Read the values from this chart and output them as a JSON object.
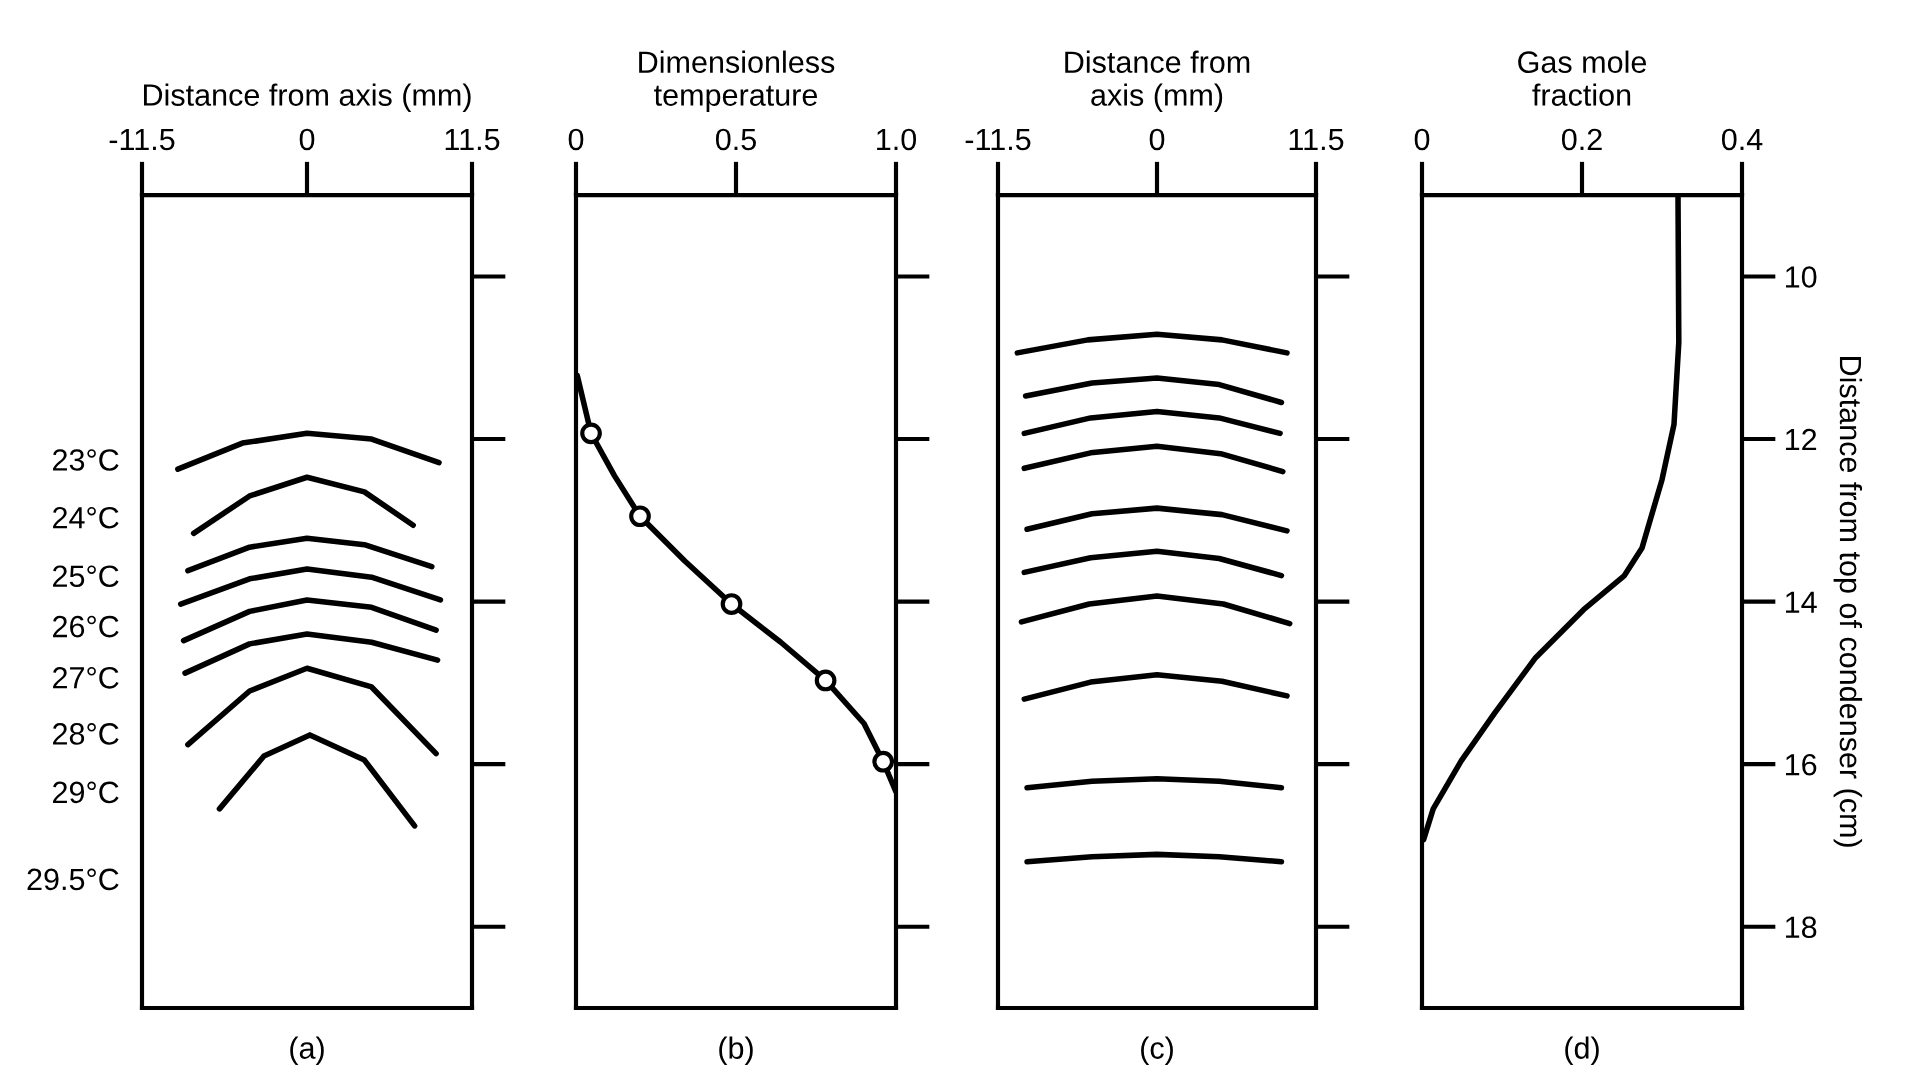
{
  "chart_data": [
    {
      "type": "line",
      "xlabel": "Distance from axis (mm)",
      "xlim": [
        -11.5,
        11.5
      ],
      "xticks": [
        -11.5,
        0,
        11.5
      ],
      "ylim": [
        19,
        9
      ],
      "yticks": [
        10,
        12,
        14,
        16,
        18
      ],
      "tick_labels": "x",
      "grid": false,
      "series": [
        {
          "color": "#000000",
          "x": [
            -9.0,
            -4.5,
            0,
            4.5,
            9.2
          ],
          "values": [
            12.37,
            12.05,
            11.93,
            12.0,
            12.29
          ]
        },
        {
          "color": "#000000",
          "x": [
            -7.9,
            -4,
            0,
            4,
            7.4
          ],
          "values": [
            13.16,
            12.7,
            12.47,
            12.65,
            13.06
          ]
        },
        {
          "color": "#000000",
          "x": [
            -8.3,
            -4,
            0,
            4,
            8.7
          ],
          "values": [
            13.62,
            13.33,
            13.22,
            13.3,
            13.57
          ]
        },
        {
          "color": "#000000",
          "x": [
            -8.8,
            -4,
            0,
            4.5,
            9.3
          ],
          "values": [
            14.03,
            13.72,
            13.6,
            13.7,
            13.98
          ]
        },
        {
          "color": "#000000",
          "x": [
            -8.6,
            -4,
            0,
            4.5,
            9.0
          ],
          "values": [
            14.48,
            14.12,
            13.98,
            14.07,
            14.35
          ]
        },
        {
          "color": "#000000",
          "x": [
            -8.5,
            -4,
            0,
            4.5,
            9.1
          ],
          "values": [
            14.88,
            14.52,
            14.4,
            14.5,
            14.72
          ]
        },
        {
          "color": "#000000",
          "x": [
            -8.3,
            -4,
            0,
            4.5,
            9.0
          ],
          "values": [
            15.76,
            15.1,
            14.82,
            15.05,
            15.87
          ]
        },
        {
          "color": "#000000",
          "x": [
            -6.1,
            -3,
            0.2,
            4,
            7.5
          ],
          "values": [
            16.55,
            15.9,
            15.64,
            15.95,
            16.76
          ]
        }
      ],
      "annotations": [
        "23°C",
        "24°C",
        "25°C",
        "26°C",
        "27°C",
        "28°C",
        "29°C",
        "29.5°C",
        "(a)"
      ]
    },
    {
      "type": "line",
      "xlabel": "Dimensionless\ntemperature",
      "xlim": [
        0,
        1
      ],
      "xticks": [
        0,
        0.5,
        {
          "value": 1,
          "label": "1.0"
        }
      ],
      "ylim": [
        19,
        9
      ],
      "yticks": [
        10,
        12,
        14,
        16,
        18
      ],
      "tick_labels": "x",
      "grid": false,
      "series": [
        {
          "color": "#000000",
          "x": [
            0.004,
            0.047,
            0.12,
            0.2,
            0.34,
            0.486,
            0.64,
            0.78,
            0.9,
            0.96,
            1.0
          ],
          "values": [
            11.22,
            11.93,
            12.45,
            12.95,
            13.5,
            14.03,
            14.5,
            14.97,
            15.5,
            15.97,
            16.34
          ]
        },
        {
          "type": "scatter",
          "marker": "circle",
          "color": "#000000",
          "x": [
            0.047,
            0.2,
            0.486,
            0.78,
            0.96
          ],
          "values": [
            11.93,
            12.95,
            14.03,
            14.97,
            15.97
          ]
        }
      ],
      "annotations": [
        "(b)"
      ]
    },
    {
      "type": "line",
      "xlabel": "Distance from\naxis (mm)",
      "xlim": [
        -11.5,
        11.5
      ],
      "xticks": [
        -11.5,
        0,
        11.5
      ],
      "ylim": [
        19,
        9
      ],
      "yticks": [
        10,
        12,
        14,
        16,
        18
      ],
      "tick_labels": "x",
      "grid": false,
      "series": [
        {
          "color": "#000000",
          "x": [
            -10.1,
            -5,
            0,
            4.7,
            9.4
          ],
          "values": [
            10.94,
            10.78,
            10.71,
            10.78,
            10.94
          ]
        },
        {
          "color": "#000000",
          "x": [
            -9.5,
            -4.7,
            0,
            4.5,
            9.0
          ],
          "values": [
            11.47,
            11.31,
            11.25,
            11.33,
            11.55
          ]
        },
        {
          "color": "#000000",
          "x": [
            -9.6,
            -4.8,
            0,
            4.5,
            8.9
          ],
          "values": [
            11.93,
            11.74,
            11.66,
            11.74,
            11.93
          ]
        },
        {
          "color": "#000000",
          "x": [
            -9.6,
            -4.8,
            0,
            4.6,
            9.1
          ],
          "values": [
            12.36,
            12.17,
            12.09,
            12.18,
            12.4
          ]
        },
        {
          "color": "#000000",
          "x": [
            -9.4,
            -4.7,
            0,
            4.7,
            9.4
          ],
          "values": [
            13.11,
            12.92,
            12.85,
            12.93,
            13.13
          ]
        },
        {
          "color": "#000000",
          "x": [
            -9.6,
            -4.8,
            0,
            4.5,
            9.0
          ],
          "values": [
            13.64,
            13.46,
            13.38,
            13.47,
            13.68
          ]
        },
        {
          "color": "#000000",
          "x": [
            -9.8,
            -4.9,
            0,
            4.8,
            9.6
          ],
          "values": [
            14.25,
            14.03,
            13.93,
            14.03,
            14.27
          ]
        },
        {
          "color": "#000000",
          "x": [
            -9.6,
            -4.8,
            0,
            4.7,
            9.4
          ],
          "values": [
            15.2,
            14.99,
            14.9,
            14.98,
            15.16
          ]
        },
        {
          "color": "#000000",
          "x": [
            -9.4,
            -4.7,
            0,
            4.5,
            9.0
          ],
          "values": [
            16.29,
            16.21,
            16.18,
            16.21,
            16.29
          ]
        },
        {
          "color": "#000000",
          "x": [
            -9.4,
            -4.7,
            0,
            4.5,
            9.0
          ],
          "values": [
            17.2,
            17.14,
            17.11,
            17.14,
            17.2
          ]
        }
      ],
      "annotations": [
        "(c)"
      ]
    },
    {
      "type": "line",
      "xlabel": "Gas mole\nfraction",
      "ylabel": "Distance from top of condenser (cm)",
      "xlim": [
        0,
        0.4
      ],
      "xticks": [
        0,
        0.2,
        0.4
      ],
      "ylim": [
        19,
        9
      ],
      "yticks": [
        10,
        12,
        14,
        16,
        18
      ],
      "grid": false,
      "series": [
        {
          "color": "#000000",
          "x": [
            0.32,
            0.321,
            0.315,
            0.3,
            0.275,
            0.253,
            0.202,
            0.142,
            0.091,
            0.049,
            0.014,
            0.002
          ],
          "values": [
            9.0,
            10.81,
            11.82,
            12.5,
            13.34,
            13.68,
            14.1,
            14.69,
            15.37,
            15.96,
            16.55,
            16.93
          ]
        }
      ],
      "annotations": [
        "(d)"
      ]
    }
  ]
}
